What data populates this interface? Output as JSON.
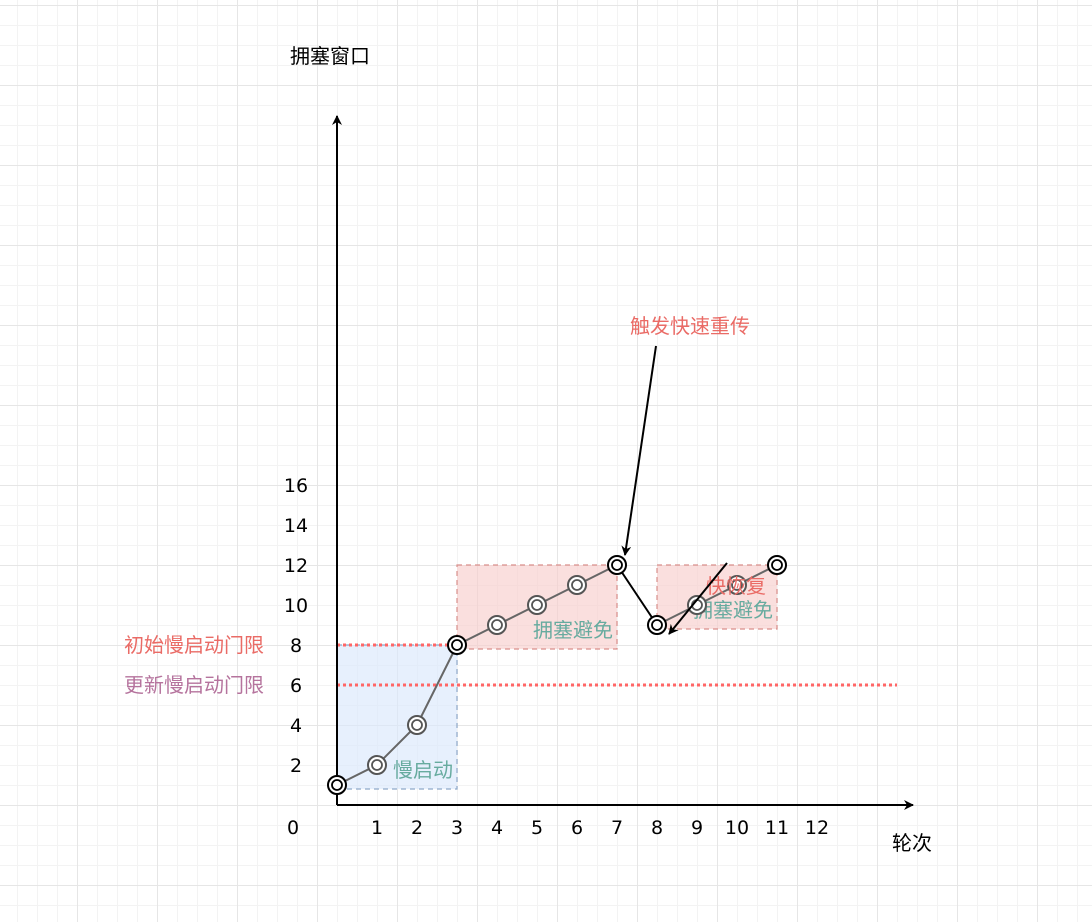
{
  "axis": {
    "y_title": "拥塞窗口",
    "x_title": "轮次",
    "origin_label": "0",
    "x_ticks": [
      "1",
      "2",
      "3",
      "4",
      "5",
      "6",
      "7",
      "8",
      "9",
      "10",
      "11",
      "12"
    ],
    "y_ticks": [
      {
        "label": "2",
        "value": 2
      },
      {
        "label": "4",
        "value": 4
      },
      {
        "label": "6",
        "value": 6
      },
      {
        "label": "8",
        "value": 8
      },
      {
        "label": "10",
        "value": 10
      },
      {
        "label": "12",
        "value": 12
      },
      {
        "label": "14",
        "value": 14
      },
      {
        "label": "16",
        "value": 16
      }
    ]
  },
  "points": [
    {
      "x": 0,
      "y": 1
    },
    {
      "x": 1,
      "y": 2
    },
    {
      "x": 2,
      "y": 4
    },
    {
      "x": 3,
      "y": 8
    },
    {
      "x": 4,
      "y": 9
    },
    {
      "x": 5,
      "y": 10
    },
    {
      "x": 6,
      "y": 11
    },
    {
      "x": 7,
      "y": 12
    },
    {
      "x": 8,
      "y": 9
    },
    {
      "x": 9,
      "y": 10
    },
    {
      "x": 10,
      "y": 11
    },
    {
      "x": 11,
      "y": 12
    }
  ],
  "regions": [
    {
      "label": "慢启动",
      "x_from": 0,
      "x_to": 3,
      "y_from": 1,
      "y_to": 8,
      "fill": "#dae8fc",
      "stroke": "#8fa9c9",
      "text_color": "#67ab9f"
    },
    {
      "label": "拥塞避免",
      "x_from": 3,
      "x_to": 7,
      "y_from": 8,
      "y_to": 12,
      "fill": "#f8cecc",
      "stroke": "#d98f8c",
      "text_color": "#67ab9f"
    },
    {
      "label": "拥塞避免",
      "x_from": 8,
      "x_to": 11,
      "y_from": 9,
      "y_to": 12,
      "fill": "#f8cecc",
      "stroke": "#d98f8c",
      "text_color": "#67ab9f"
    }
  ],
  "thresholds": [
    {
      "label": "初始慢启动门限",
      "value": 8,
      "x_to": 3,
      "label_color": "#ea6b66"
    },
    {
      "label": "更新慢启动门限",
      "value": 6,
      "x_to": 14,
      "label_color": "#b5739d"
    }
  ],
  "annotations": {
    "fast_retransmit": {
      "label": "触发快速重传",
      "color": "#ea6b66",
      "target": {
        "x": 7,
        "y": 12
      }
    },
    "fast_recovery": {
      "label": "快恢复",
      "color": "#ea6b66",
      "target": {
        "x": 8,
        "y": 9
      }
    }
  },
  "colors": {
    "axis": "#000000",
    "line": "#666666",
    "threshold": "#ff6666"
  }
}
